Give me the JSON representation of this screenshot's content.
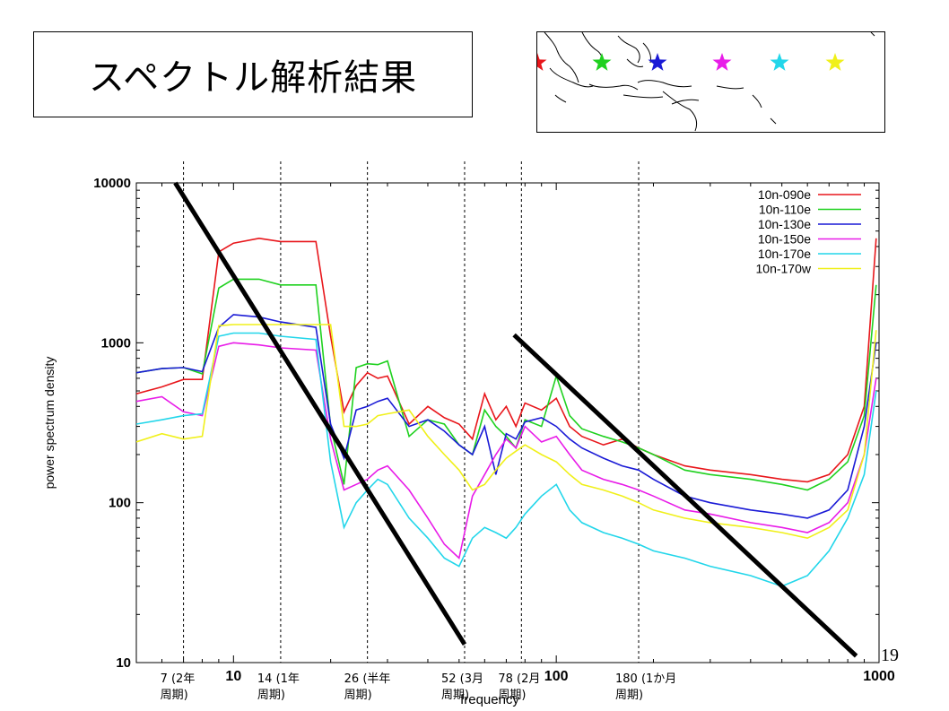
{
  "slide": {
    "title": "スペクトル解析結果",
    "page_number": "19"
  },
  "map": {
    "markers": [
      {
        "icon": "star-icon",
        "color": "#e8161b",
        "series": "10n-090e"
      },
      {
        "icon": "star-icon",
        "color": "#1fd11f",
        "series": "10n-110e"
      },
      {
        "icon": "star-icon",
        "color": "#1a1ad6",
        "series": "10n-130e"
      },
      {
        "icon": "star-icon",
        "color": "#e81ce8",
        "series": "10n-150e"
      },
      {
        "icon": "star-icon",
        "color": "#22d6ea",
        "series": "10n-170e"
      },
      {
        "icon": "star-icon",
        "color": "#f0f01a",
        "series": "10n-170w"
      }
    ]
  },
  "chart_data": {
    "type": "line",
    "xlabel": "frequency",
    "ylabel": "power spectrum density",
    "xscale": "log",
    "yscale": "log",
    "xlim": [
      5,
      1000
    ],
    "ylim": [
      10,
      10000
    ],
    "x_ticks": [
      "10",
      "100",
      "1000"
    ],
    "y_ticks": [
      "10",
      "100",
      "1000",
      "10000"
    ],
    "grid": false,
    "legend_position": "top-right",
    "reference_lines": [
      {
        "x": 7,
        "label_lines": [
          "7 (2年",
          "周期)"
        ]
      },
      {
        "x": 14,
        "label_lines": [
          "14 (1年",
          "周期)"
        ]
      },
      {
        "x": 26,
        "label_lines": [
          "26 (半年",
          "周期)"
        ]
      },
      {
        "x": 52,
        "label_lines": [
          "52 (3月",
          "周期)"
        ]
      },
      {
        "x": 78,
        "label_lines": [
          "78 (2月",
          "周期)"
        ]
      },
      {
        "x": 180,
        "label_lines": [
          "180 (1か月",
          "周期)"
        ]
      }
    ],
    "trend_lines": [
      {
        "x": [
          6.6,
          52
        ],
        "y": [
          10000,
          13
        ],
        "color": "#000000"
      },
      {
        "x": [
          74,
          850
        ],
        "y": [
          1120,
          11
        ],
        "color": "#000000"
      }
    ],
    "series": [
      {
        "name": "10n-090e",
        "color": "#e8161b",
        "x": [
          5,
          6,
          7,
          8,
          9,
          10,
          12,
          14,
          18,
          20,
          22,
          24,
          26,
          28,
          30,
          35,
          40,
          45,
          50,
          55,
          60,
          65,
          70,
          75,
          80,
          90,
          100,
          110,
          120,
          140,
          160,
          180,
          200,
          250,
          300,
          400,
          500,
          600,
          700,
          800,
          900,
          980
        ],
        "y": [
          480,
          530,
          590,
          590,
          3700,
          4200,
          4500,
          4300,
          4300,
          1100,
          370,
          540,
          650,
          600,
          620,
          310,
          400,
          340,
          310,
          250,
          480,
          330,
          400,
          300,
          420,
          380,
          450,
          300,
          260,
          230,
          250,
          220,
          200,
          170,
          160,
          150,
          140,
          135,
          150,
          200,
          400,
          4500
        ]
      },
      {
        "name": "10n-110e",
        "color": "#1fd11f",
        "x": [
          5,
          6,
          7,
          8,
          9,
          10,
          12,
          14,
          18,
          20,
          22,
          24,
          26,
          28,
          30,
          35,
          40,
          45,
          50,
          55,
          60,
          65,
          70,
          75,
          80,
          90,
          100,
          110,
          120,
          140,
          160,
          180,
          200,
          250,
          300,
          400,
          500,
          600,
          700,
          800,
          900,
          980
        ],
        "y": [
          650,
          690,
          700,
          640,
          2200,
          2500,
          2500,
          2300,
          2300,
          300,
          130,
          700,
          740,
          730,
          770,
          260,
          330,
          310,
          230,
          200,
          380,
          300,
          260,
          220,
          330,
          300,
          620,
          350,
          290,
          260,
          240,
          220,
          200,
          160,
          150,
          140,
          130,
          120,
          140,
          180,
          350,
          2300
        ]
      },
      {
        "name": "10n-130e",
        "color": "#1a1ad6",
        "x": [
          5,
          6,
          7,
          8,
          9,
          10,
          12,
          14,
          18,
          20,
          22,
          24,
          26,
          28,
          30,
          35,
          40,
          45,
          50,
          55,
          60,
          65,
          70,
          75,
          80,
          90,
          100,
          110,
          120,
          140,
          160,
          180,
          200,
          250,
          300,
          400,
          500,
          600,
          700,
          800,
          900,
          980
        ],
        "y": [
          650,
          690,
          700,
          660,
          1250,
          1500,
          1450,
          1350,
          1250,
          310,
          190,
          380,
          400,
          430,
          450,
          300,
          330,
          280,
          230,
          200,
          300,
          150,
          270,
          250,
          320,
          340,
          300,
          250,
          220,
          190,
          170,
          160,
          140,
          110,
          100,
          90,
          85,
          80,
          90,
          120,
          300,
          1000
        ]
      },
      {
        "name": "10n-150e",
        "color": "#e81ce8",
        "x": [
          5,
          6,
          7,
          8,
          9,
          10,
          12,
          14,
          18,
          20,
          22,
          24,
          26,
          28,
          30,
          35,
          40,
          45,
          50,
          55,
          60,
          65,
          70,
          75,
          80,
          90,
          100,
          110,
          120,
          140,
          160,
          180,
          200,
          250,
          300,
          400,
          500,
          600,
          700,
          800,
          900,
          980
        ],
        "y": [
          430,
          460,
          370,
          350,
          950,
          1000,
          970,
          930,
          900,
          250,
          120,
          130,
          140,
          160,
          170,
          120,
          80,
          55,
          45,
          110,
          150,
          200,
          250,
          220,
          300,
          240,
          260,
          200,
          160,
          140,
          130,
          120,
          110,
          90,
          85,
          75,
          70,
          65,
          75,
          100,
          200,
          600
        ]
      },
      {
        "name": "10n-170e",
        "color": "#22d6ea",
        "x": [
          5,
          6,
          7,
          8,
          9,
          10,
          12,
          14,
          18,
          20,
          22,
          24,
          26,
          28,
          30,
          35,
          40,
          45,
          50,
          55,
          60,
          65,
          70,
          75,
          80,
          90,
          100,
          110,
          120,
          140,
          160,
          180,
          200,
          250,
          300,
          400,
          500,
          600,
          700,
          800,
          900,
          980
        ],
        "y": [
          310,
          330,
          350,
          360,
          1100,
          1150,
          1150,
          1100,
          1050,
          180,
          70,
          100,
          120,
          140,
          130,
          80,
          60,
          45,
          40,
          60,
          70,
          65,
          60,
          70,
          85,
          110,
          130,
          90,
          75,
          65,
          60,
          55,
          50,
          45,
          40,
          35,
          30,
          35,
          50,
          80,
          150,
          500
        ]
      },
      {
        "name": "10n-170w",
        "color": "#f0f01a",
        "x": [
          5,
          6,
          7,
          8,
          9,
          10,
          12,
          14,
          18,
          20,
          22,
          24,
          26,
          28,
          30,
          35,
          40,
          45,
          50,
          55,
          60,
          65,
          70,
          75,
          80,
          90,
          100,
          110,
          120,
          140,
          160,
          180,
          200,
          250,
          300,
          400,
          500,
          600,
          700,
          800,
          900,
          980
        ],
        "y": [
          240,
          270,
          250,
          260,
          1280,
          1300,
          1300,
          1300,
          1300,
          1300,
          300,
          300,
          310,
          350,
          360,
          380,
          260,
          200,
          160,
          120,
          130,
          160,
          190,
          210,
          230,
          200,
          180,
          150,
          130,
          120,
          110,
          100,
          90,
          80,
          75,
          70,
          65,
          60,
          70,
          90,
          200,
          1200
        ]
      }
    ]
  }
}
